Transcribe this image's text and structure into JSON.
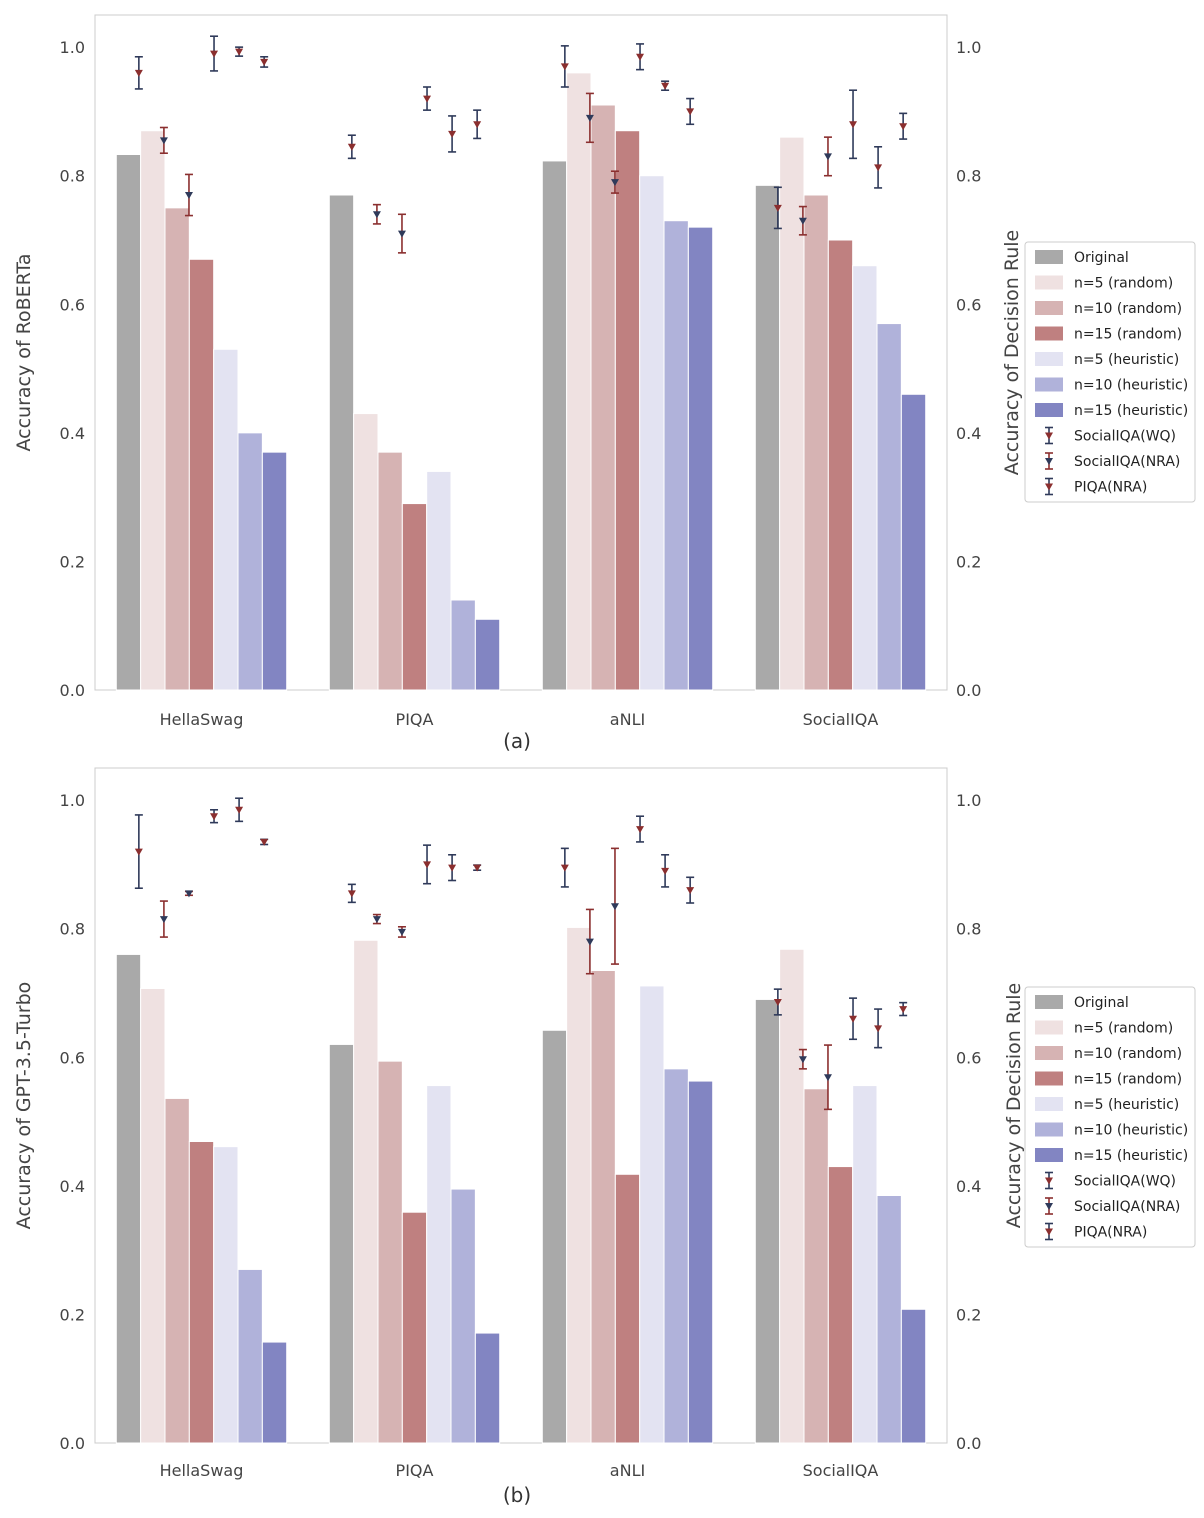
{
  "chart_data": [
    {
      "panel_label": "(a)",
      "type": "bar",
      "ylabel": "Accuracy of RoBERTa",
      "ylabel_right": "Accuracy of Decision Rule",
      "ylim": [
        0,
        1.05
      ],
      "yticks": [
        "0.0",
        "0.2",
        "0.4",
        "0.6",
        "0.8",
        "1.0"
      ],
      "yticks_right": [
        "0.0",
        "0.2",
        "0.4",
        "0.6",
        "0.8",
        "1.0"
      ],
      "categories": [
        "HellaSwag",
        "PIQA",
        "aNLI",
        "SocialIQA"
      ],
      "series": [
        {
          "name": "Original",
          "color": "#a9a9a9",
          "values": [
            0.833,
            0.77,
            0.823,
            0.785
          ]
        },
        {
          "name": "n=5 (random)",
          "color": "#efe1e1",
          "values": [
            0.87,
            0.43,
            0.96,
            0.86
          ]
        },
        {
          "name": "n=10 (random)",
          "color": "#d6b3b3",
          "values": [
            0.75,
            0.37,
            0.91,
            0.77
          ]
        },
        {
          "name": "n=15 (random)",
          "color": "#bf8080",
          "values": [
            0.67,
            0.29,
            0.87,
            0.7
          ]
        },
        {
          "name": "n=5 (heuristic)",
          "color": "#e3e3f2",
          "values": [
            0.53,
            0.34,
            0.8,
            0.66
          ]
        },
        {
          "name": "n=10 (heuristic)",
          "color": "#b0b2da",
          "values": [
            0.4,
            0.14,
            0.73,
            0.57
          ]
        },
        {
          "name": "n=15 (heuristic)",
          "color": "#8285c2",
          "values": [
            0.37,
            0.11,
            0.72,
            0.46
          ]
        }
      ],
      "errorbar_series": [
        {
          "name": "SocialIQA(WQ)",
          "marker_color": "#8b2f2f",
          "bar_color": "#2f3a5a",
          "points": [
            {
              "x": 0,
              "y": 0.96,
              "err": 0.025
            },
            {
              "x": 1,
              "y": 0.845,
              "err": 0.018
            },
            {
              "x": 2,
              "y": 0.97,
              "err": 0.032
            },
            {
              "x": 3,
              "y": 0.75,
              "err": 0.032
            }
          ]
        },
        {
          "name": "SocialIQA(NRA)",
          "marker_color": "#2f3a5a",
          "bar_color": "#8b2f2f",
          "points": [
            {
              "x": 0,
              "y": 0.855,
              "err": 0.02
            },
            {
              "x": 0,
              "y": 0.77,
              "err": 0.032
            },
            {
              "x": 1,
              "y": 0.74,
              "err": 0.015
            },
            {
              "x": 1,
              "y": 0.71,
              "err": 0.03
            },
            {
              "x": 2,
              "y": 0.89,
              "err": 0.038
            },
            {
              "x": 2,
              "y": 0.79,
              "err": 0.017
            },
            {
              "x": 3,
              "y": 0.73,
              "err": 0.022
            },
            {
              "x": 3,
              "y": 0.83,
              "err": 0.03
            }
          ]
        },
        {
          "name": "PIQA(NRA)",
          "marker_color": "#8b2f2f",
          "bar_color": "#2f3a5a",
          "points": [
            {
              "x": 0,
              "y": 0.99,
              "err": 0.027
            },
            {
              "x": 0,
              "y": 0.993,
              "err": 0.007
            },
            {
              "x": 0,
              "y": 0.977,
              "err": 0.008
            },
            {
              "x": 1,
              "y": 0.92,
              "err": 0.018
            },
            {
              "x": 1,
              "y": 0.865,
              "err": 0.028
            },
            {
              "x": 1,
              "y": 0.88,
              "err": 0.022
            },
            {
              "x": 2,
              "y": 0.985,
              "err": 0.02
            },
            {
              "x": 2,
              "y": 0.94,
              "err": 0.007
            },
            {
              "x": 2,
              "y": 0.9,
              "err": 0.02
            },
            {
              "x": 3,
              "y": 0.88,
              "err": 0.053
            },
            {
              "x": 3,
              "y": 0.813,
              "err": 0.032
            },
            {
              "x": 3,
              "y": 0.877,
              "err": 0.02
            }
          ]
        }
      ],
      "legend_position": "right"
    },
    {
      "panel_label": "(b)",
      "type": "bar",
      "ylabel": "Accuracy of GPT-3.5-Turbo",
      "ylabel_right": "Accuracy of Decision Rule",
      "ylim": [
        0,
        1.05
      ],
      "yticks": [
        "0.0",
        "0.2",
        "0.4",
        "0.6",
        "0.8",
        "1.0"
      ],
      "yticks_right": [
        "0.0",
        "0.2",
        "0.4",
        "0.6",
        "0.8",
        "1.0"
      ],
      "categories": [
        "HellaSwag",
        "PIQA",
        "aNLI",
        "SocialIQA"
      ],
      "series": [
        {
          "name": "Original",
          "color": "#a9a9a9",
          "values": [
            0.76,
            0.62,
            0.642,
            0.69
          ]
        },
        {
          "name": "n=5 (random)",
          "color": "#efe1e1",
          "values": [
            0.707,
            0.782,
            0.802,
            0.768
          ]
        },
        {
          "name": "n=10 (random)",
          "color": "#d6b3b3",
          "values": [
            0.536,
            0.594,
            0.735,
            0.551
          ]
        },
        {
          "name": "n=15 (random)",
          "color": "#bf8080",
          "values": [
            0.469,
            0.359,
            0.418,
            0.43
          ]
        },
        {
          "name": "n=5 (heuristic)",
          "color": "#e3e3f2",
          "values": [
            0.461,
            0.556,
            0.711,
            0.556
          ]
        },
        {
          "name": "n=10 (heuristic)",
          "color": "#b0b2da",
          "values": [
            0.27,
            0.395,
            0.582,
            0.385
          ]
        },
        {
          "name": "n=15 (heuristic)",
          "color": "#8285c2",
          "values": [
            0.157,
            0.171,
            0.563,
            0.208
          ]
        }
      ],
      "errorbar_series": [
        {
          "name": "SocialIQA(WQ)",
          "marker_color": "#8b2f2f",
          "bar_color": "#2f3a5a",
          "points": [
            {
              "x": 0,
              "y": 0.92,
              "err": 0.057
            },
            {
              "x": 1,
              "y": 0.855,
              "err": 0.014
            },
            {
              "x": 2,
              "y": 0.895,
              "err": 0.03
            },
            {
              "x": 3,
              "y": 0.686,
              "err": 0.02
            }
          ]
        },
        {
          "name": "SocialIQA(NRA)",
          "marker_color": "#2f3a5a",
          "bar_color": "#8b2f2f",
          "points": [
            {
              "x": 0,
              "y": 0.815,
              "err": 0.028
            },
            {
              "x": 0,
              "y": 0.855,
              "err": 0.003
            },
            {
              "x": 1,
              "y": 0.815,
              "err": 0.007
            },
            {
              "x": 1,
              "y": 0.795,
              "err": 0.008
            },
            {
              "x": 2,
              "y": 0.78,
              "err": 0.05
            },
            {
              "x": 2,
              "y": 0.835,
              "err": 0.09
            },
            {
              "x": 3,
              "y": 0.597,
              "err": 0.015
            },
            {
              "x": 3,
              "y": 0.569,
              "err": 0.05
            }
          ]
        },
        {
          "name": "PIQA(NRA)",
          "marker_color": "#8b2f2f",
          "bar_color": "#2f3a5a",
          "points": [
            {
              "x": 0,
              "y": 0.975,
              "err": 0.01
            },
            {
              "x": 0,
              "y": 0.985,
              "err": 0.018
            },
            {
              "x": 0,
              "y": 0.935,
              "err": 0.004
            },
            {
              "x": 1,
              "y": 0.9,
              "err": 0.03
            },
            {
              "x": 1,
              "y": 0.895,
              "err": 0.02
            },
            {
              "x": 1,
              "y": 0.895,
              "err": 0.004
            },
            {
              "x": 2,
              "y": 0.955,
              "err": 0.02
            },
            {
              "x": 2,
              "y": 0.89,
              "err": 0.025
            },
            {
              "x": 2,
              "y": 0.86,
              "err": 0.02
            },
            {
              "x": 3,
              "y": 0.66,
              "err": 0.032
            },
            {
              "x": 3,
              "y": 0.645,
              "err": 0.03
            },
            {
              "x": 3,
              "y": 0.675,
              "err": 0.01
            }
          ]
        }
      ],
      "legend_position": "right"
    }
  ]
}
